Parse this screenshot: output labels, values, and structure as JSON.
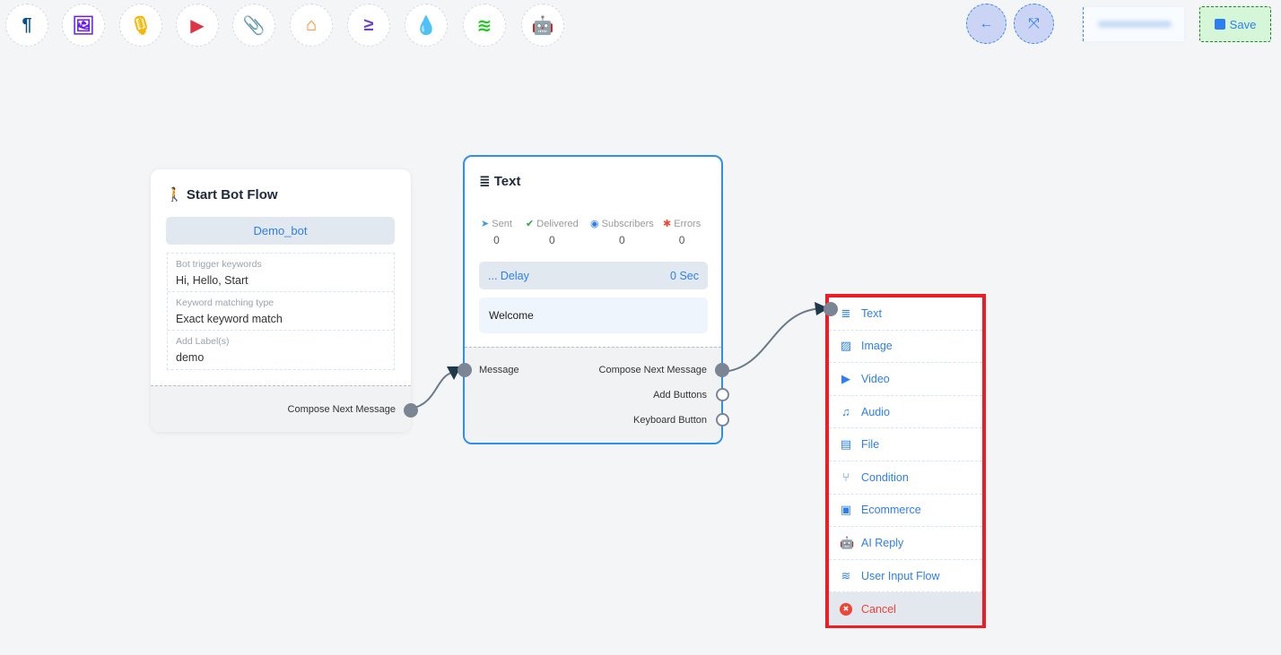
{
  "toolbar": {
    "tools": [
      {
        "icon": "paragraph-icon",
        "glyph": "¶",
        "color": "#0b4f8a"
      },
      {
        "icon": "image-icon",
        "glyph": "🖼",
        "color": "#6a1cf0"
      },
      {
        "icon": "microphone-icon",
        "glyph": "🎙",
        "color": "#f7b500"
      },
      {
        "icon": "youtube-icon",
        "glyph": "▶",
        "color": "#dc3545"
      },
      {
        "icon": "paperclip-icon",
        "glyph": "📎",
        "color": "#28a745"
      },
      {
        "icon": "store-icon",
        "glyph": "⌂",
        "color": "#fd7e14"
      },
      {
        "icon": "greater-equal-icon",
        "glyph": "≥",
        "color": "#6f42c1"
      },
      {
        "icon": "droplet-icon",
        "glyph": "💧",
        "color": "#c8102e"
      },
      {
        "icon": "stack-icon",
        "glyph": "≋",
        "color": "#22c922"
      },
      {
        "icon": "robot-icon",
        "glyph": "🤖",
        "color": "#1a1ae0"
      }
    ],
    "back_glyph": "←",
    "fit_glyph": "⤧",
    "save_label": "Save"
  },
  "start_node": {
    "title": "Start Bot Flow",
    "bot_name": "Demo_bot",
    "fields": [
      {
        "label": "Bot trigger keywords",
        "value": "Hi, Hello, Start"
      },
      {
        "label": "Keyword matching type",
        "value": "Exact keyword match"
      },
      {
        "label": "Add Label(s)",
        "value": "demo"
      }
    ],
    "output": "Compose Next Message"
  },
  "text_node": {
    "title": "Text",
    "stats": [
      {
        "label": "Sent",
        "value": "0",
        "color": "#3a9be8"
      },
      {
        "label": "Delivered",
        "value": "0",
        "color": "#28a745"
      },
      {
        "label": "Subscribers",
        "value": "0",
        "color": "#2d7ff0"
      },
      {
        "label": "Errors",
        "value": "0",
        "color": "#f04436"
      }
    ],
    "delay_label": "... Delay",
    "delay_value": "0 Sec",
    "message": "Welcome",
    "input": "Message",
    "outputs": [
      "Compose Next Message",
      "Add Buttons",
      "Keyboard Button"
    ]
  },
  "menu": {
    "items": [
      {
        "label": "Text",
        "icon": "list-icon",
        "glyph": "≣"
      },
      {
        "label": "Image",
        "icon": "image-icon",
        "glyph": "▨"
      },
      {
        "label": "Video",
        "icon": "video-icon",
        "glyph": "▶"
      },
      {
        "label": "Audio",
        "icon": "music-icon",
        "glyph": "♫"
      },
      {
        "label": "File",
        "icon": "file-pdf-icon",
        "glyph": "▤"
      },
      {
        "label": "Condition",
        "icon": "code-branch-icon",
        "glyph": "⑂"
      },
      {
        "label": "Ecommerce",
        "icon": "shopping-bag-icon",
        "glyph": "▣"
      },
      {
        "label": "AI Reply",
        "icon": "robot-icon",
        "glyph": "🤖"
      },
      {
        "label": "User Input Flow",
        "icon": "stack-icon",
        "glyph": "≋"
      }
    ],
    "cancel": {
      "label": "Cancel",
      "icon": "cancel-icon",
      "glyph": "✖"
    }
  },
  "colors": {
    "accent": "#2d7ff0",
    "highlight": "#ee1c25",
    "cancel": "#f04436"
  }
}
